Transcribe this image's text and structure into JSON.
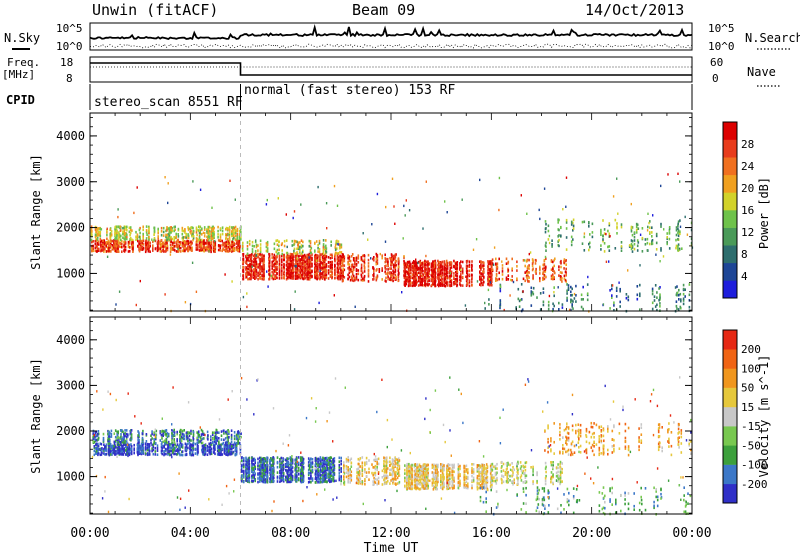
{
  "header": {
    "station": "Unwin (fitACF)",
    "beam": "Beam 09",
    "date": "14/Oct/2013"
  },
  "summary_panels": {
    "nsky_label": "N.Sky",
    "nsearch_label": "N.Search",
    "nsky_ticks": [
      "10^5",
      "10^0"
    ],
    "nsearch_ticks": [
      "10^5",
      "10^0"
    ],
    "freq_label": "Freq.",
    "freq_unit": "[MHz]",
    "freq_ticks": [
      "18",
      "8"
    ],
    "nave_label": "Nave",
    "nave_ticks": [
      "60",
      "0"
    ],
    "cpid_label": "CPID",
    "cpid_segments": [
      {
        "label": "stereo_scan 8551 RF",
        "start_hour": 0,
        "end_hour": 6
      },
      {
        "label": "normal (fast stereo) 153 RF",
        "start_hour": 6,
        "end_hour": 24
      }
    ]
  },
  "colors": {
    "power_scale": [
      "#1e1edc",
      "#1e4696",
      "#2e6e6e",
      "#4a9a58",
      "#6ec24a",
      "#d2d22a",
      "#f0a020",
      "#f07020",
      "#e83c1c",
      "#dc0000"
    ],
    "velocity_scale": [
      "#3030c8",
      "#3c78c8",
      "#3ca03c",
      "#78c850",
      "#c8c8c8",
      "#e6c83c",
      "#f0961e",
      "#f06414",
      "#e62814"
    ]
  },
  "chart_data": [
    {
      "type": "heatmap",
      "name": "power",
      "xlabel": "Time UT",
      "ylabel": "Slant Range [km]",
      "x_tick_labels": [
        "00:00",
        "04:00",
        "08:00",
        "12:00",
        "16:00",
        "20:00",
        "00:00"
      ],
      "xlim_hours": [
        0,
        24
      ],
      "ylim_km": [
        180,
        4500
      ],
      "y_tick_labels": [
        "1000",
        "2000",
        "3000",
        "4000"
      ],
      "colorbar_label": "Power [dB]",
      "colorbar_ticks": [
        "28",
        "24",
        "20",
        "16",
        "12",
        "8",
        "4"
      ],
      "colorbar_range": [
        0,
        30
      ],
      "bands": [
        {
          "t0": 0.0,
          "t1": 6.0,
          "r0": 1500,
          "r1": 1750,
          "level": 0.82,
          "density": 0.95
        },
        {
          "t0": 0.0,
          "t1": 6.0,
          "r0": 1750,
          "r1": 2050,
          "level": 0.55,
          "density": 0.7
        },
        {
          "t0": 6.0,
          "t1": 10.0,
          "r0": 900,
          "r1": 1450,
          "level": 0.9,
          "density": 0.95
        },
        {
          "t0": 6.0,
          "t1": 10.0,
          "r0": 1450,
          "r1": 1750,
          "level": 0.55,
          "density": 0.5
        },
        {
          "t0": 10.0,
          "t1": 12.5,
          "r0": 850,
          "r1": 1450,
          "level": 0.85,
          "density": 0.6
        },
        {
          "t0": 12.5,
          "t1": 16.0,
          "r0": 750,
          "r1": 1300,
          "level": 0.92,
          "density": 0.9
        },
        {
          "t0": 16.0,
          "t1": 19.0,
          "r0": 850,
          "r1": 1350,
          "level": 0.8,
          "density": 0.5
        },
        {
          "t0": 18.0,
          "t1": 24.0,
          "r0": 1500,
          "r1": 2200,
          "level": 0.4,
          "density": 0.3
        },
        {
          "t0": 15.5,
          "t1": 24.0,
          "r0": 200,
          "r1": 800,
          "level": 0.25,
          "density": 0.25
        }
      ]
    },
    {
      "type": "heatmap",
      "name": "velocity",
      "xlabel": "Time UT",
      "ylabel": "Slant Range [km]",
      "x_tick_labels": [
        "00:00",
        "04:00",
        "08:00",
        "12:00",
        "16:00",
        "20:00",
        "00:00"
      ],
      "xlim_hours": [
        0,
        24
      ],
      "ylim_km": [
        180,
        4500
      ],
      "y_tick_labels": [
        "1000",
        "2000",
        "3000",
        "4000"
      ],
      "colorbar_label": "Velocity [m s^-1]",
      "colorbar_ticks": [
        "200",
        "100",
        "50",
        "15",
        "-15",
        "-50",
        "-100",
        "-200"
      ],
      "colorbar_range": [
        -250,
        250
      ],
      "bands": [
        {
          "t0": 0.0,
          "t1": 6.0,
          "r0": 1500,
          "r1": 1750,
          "level": 0.1,
          "density": 0.95
        },
        {
          "t0": 0.0,
          "t1": 6.0,
          "r0": 1750,
          "r1": 2050,
          "level": 0.2,
          "density": 0.7
        },
        {
          "t0": 6.0,
          "t1": 10.0,
          "r0": 900,
          "r1": 1450,
          "level": 0.15,
          "density": 0.95
        },
        {
          "t0": 10.0,
          "t1": 12.5,
          "r0": 850,
          "r1": 1450,
          "level": 0.6,
          "density": 0.6
        },
        {
          "t0": 12.5,
          "t1": 16.0,
          "r0": 750,
          "r1": 1300,
          "level": 0.6,
          "density": 0.9
        },
        {
          "t0": 16.0,
          "t1": 19.0,
          "r0": 850,
          "r1": 1350,
          "level": 0.5,
          "density": 0.5
        },
        {
          "t0": 18.0,
          "t1": 24.0,
          "r0": 1500,
          "r1": 2200,
          "level": 0.7,
          "density": 0.3
        },
        {
          "t0": 15.5,
          "t1": 24.0,
          "r0": 200,
          "r1": 800,
          "level": 0.3,
          "density": 0.25
        }
      ]
    }
  ]
}
